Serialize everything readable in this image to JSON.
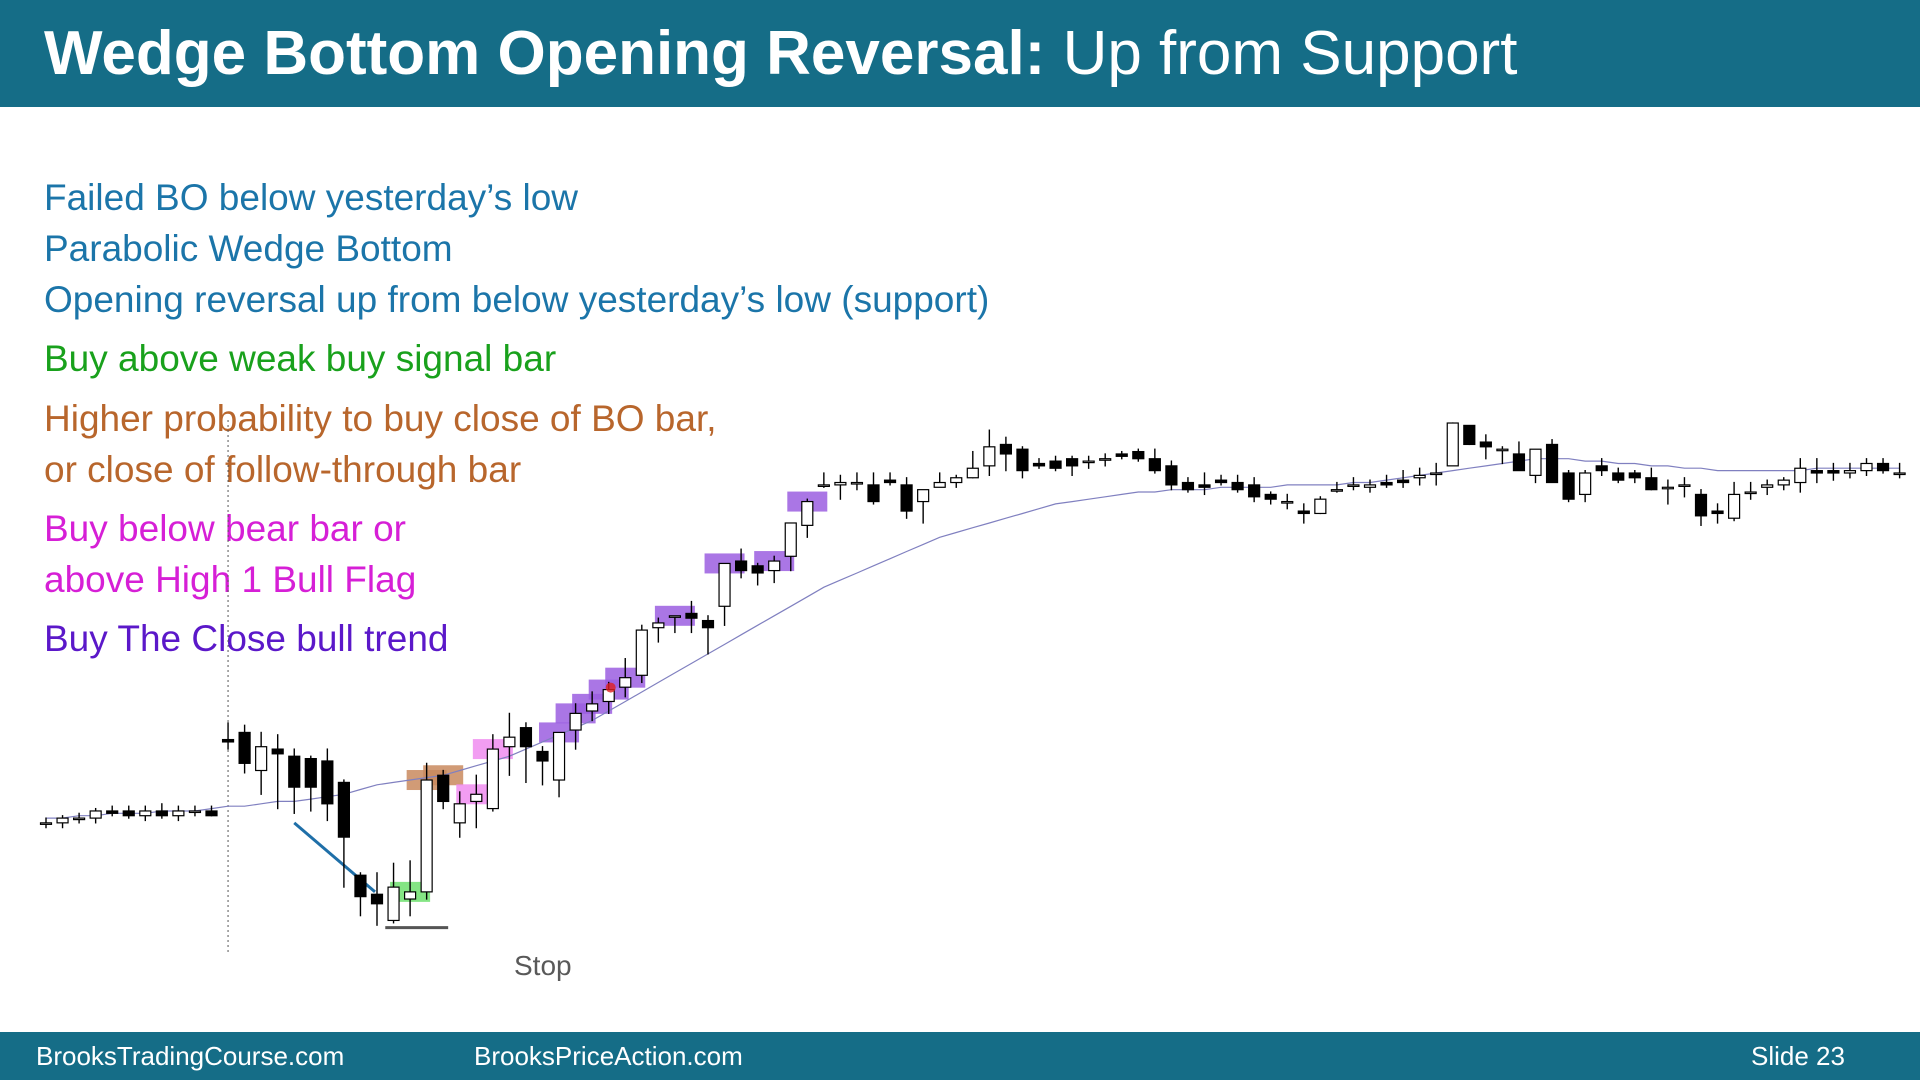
{
  "header": {
    "title_bold": "Wedge Bottom Opening Reversal:",
    "title_rest": "Up from Support"
  },
  "notes": [
    {
      "text": "Failed BO below yesterday’s low",
      "color": "#1b75a9"
    },
    {
      "text": "Parabolic Wedge Bottom",
      "color": "#1b75a9"
    },
    {
      "text": "Opening reversal up from below yesterday’s low (support)",
      "color": "#1b75a9"
    },
    {
      "text": "Buy above weak buy signal bar",
      "color": "#19a11c"
    },
    {
      "text": "Higher probability to buy close of BO bar,",
      "color": "#b8662c"
    },
    {
      "text": "or close of follow-through bar",
      "color": "#b8662c"
    },
    {
      "text": "Buy below bear bar or",
      "color": "#d61fd6"
    },
    {
      "text": "above High 1 Bull Flag",
      "color": "#d61fd6"
    },
    {
      "text": "Buy The Close bull trend",
      "color": "#5b18c9"
    }
  ],
  "chart_labels": {
    "stop": "Stop"
  },
  "colors": {
    "header_bg": "#156d87",
    "ema": "#8080c0",
    "wedge_line": "#1f6fa8",
    "signal_green": "#6fe06f",
    "bo_orange": "#c98a5e",
    "flag_pink": "#f08cf0",
    "trend_purple": "#9b5ee0",
    "bear_bar": "#000000",
    "bull_bar": "#ffffff"
  },
  "chart_data": {
    "type": "candlestick",
    "x_unit": "bar index",
    "y_unit": "relative price (unlabeled axis)",
    "bars": [
      [
        0,
        3,
        4,
        2,
        3
      ],
      [
        1,
        3,
        5,
        2,
        5
      ],
      [
        2,
        5,
        6,
        4,
        5
      ],
      [
        3,
        5,
        8,
        4,
        8
      ],
      [
        4,
        8,
        9,
        7,
        7
      ],
      [
        5,
        8,
        9,
        6,
        6
      ],
      [
        6,
        6,
        9,
        5,
        8
      ],
      [
        7,
        8,
        10,
        6,
        6
      ],
      [
        8,
        6,
        9,
        5,
        8
      ],
      [
        9,
        8,
        9,
        7,
        8
      ],
      [
        10,
        8,
        9,
        7,
        6
      ],
      [
        11,
        38,
        44,
        35,
        37
      ],
      [
        12,
        41,
        43,
        25,
        28
      ],
      [
        13,
        25,
        40,
        16,
        35
      ],
      [
        14,
        34,
        39,
        10,
        32
      ],
      [
        15,
        31,
        33,
        8,
        18
      ],
      [
        16,
        30,
        30,
        9,
        18
      ],
      [
        17,
        29,
        33,
        5,
        11
      ],
      [
        18,
        20,
        20,
        -23,
        -3
      ],
      [
        19,
        -19,
        -19,
        -35,
        -28
      ],
      [
        20,
        -27,
        -19,
        -39,
        -31
      ],
      [
        21,
        -38,
        -15,
        -38,
        -24
      ],
      [
        22,
        -29,
        -14,
        -35,
        -26
      ],
      [
        23,
        -26,
        27,
        -28,
        21
      ],
      [
        24,
        23,
        24,
        10,
        12
      ],
      [
        25,
        3,
        15,
        -2,
        11
      ],
      [
        26,
        12,
        22,
        2,
        15
      ],
      [
        27,
        9,
        39,
        9,
        34
      ],
      [
        28,
        35,
        48,
        24,
        39
      ],
      [
        29,
        43,
        44,
        21,
        35
      ],
      [
        30,
        33,
        34,
        20,
        29
      ],
      [
        31,
        21,
        39,
        15,
        41
      ],
      [
        32,
        42,
        52,
        35,
        49
      ],
      [
        33,
        50,
        57,
        47,
        53
      ],
      [
        34,
        54,
        61,
        50,
        59
      ],
      [
        35,
        60,
        71,
        57,
        64
      ],
      [
        36,
        65,
        85,
        63,
        84
      ],
      [
        37,
        85,
        88,
        80,
        87
      ],
      [
        38,
        90,
        88,
        84,
        90
      ],
      [
        39,
        91,
        95,
        84,
        89
      ],
      [
        40,
        88,
        89,
        75,
        85
      ],
      [
        41,
        94,
        110,
        87,
        112
      ],
      [
        42,
        113,
        117,
        107,
        109
      ],
      [
        43,
        111,
        111,
        104,
        108
      ],
      [
        44,
        109,
        114,
        105,
        113
      ],
      [
        45,
        115,
        124,
        110,
        129
      ],
      [
        46,
        128,
        138,
        124,
        138
      ],
      [
        47,
        145,
        149,
        145,
        145
      ],
      [
        48,
        145,
        148,
        140,
        146
      ],
      [
        49,
        146,
        149,
        144,
        146
      ],
      [
        50,
        145,
        149,
        138,
        138
      ],
      [
        51,
        147,
        149,
        146,
        146
      ],
      [
        52,
        145,
        147,
        132,
        134
      ],
      [
        53,
        138,
        139,
        130,
        143
      ],
      [
        54,
        144,
        149,
        146,
        146
      ],
      [
        55,
        146,
        148,
        145,
        148
      ],
      [
        56,
        148,
        158,
        149,
        152
      ],
      [
        57,
        153,
        167,
        150,
        161
      ],
      [
        58,
        162,
        164,
        152,
        158
      ],
      [
        59,
        160,
        160,
        149,
        151
      ],
      [
        60,
        154,
        155,
        153,
        153
      ],
      [
        61,
        155,
        156,
        152,
        152
      ],
      [
        62,
        156,
        156,
        150,
        153
      ],
      [
        63,
        155,
        156,
        153,
        155
      ],
      [
        64,
        156,
        157,
        154,
        156
      ],
      [
        65,
        158,
        158,
        157,
        157
      ],
      [
        66,
        159,
        159,
        156,
        156
      ],
      [
        67,
        156,
        159,
        151,
        151
      ],
      [
        68,
        153,
        154,
        144,
        145
      ],
      [
        69,
        146,
        147,
        143,
        143
      ],
      [
        70,
        145,
        149,
        142,
        144
      ],
      [
        71,
        147,
        148,
        146,
        146
      ],
      [
        72,
        146,
        148,
        143,
        143
      ],
      [
        73,
        145,
        147,
        139,
        140
      ],
      [
        74,
        141,
        141,
        138,
        139
      ],
      [
        75,
        138,
        140,
        136,
        138
      ],
      [
        76,
        134,
        136,
        130,
        133
      ],
      [
        77,
        133,
        139,
        134,
        139
      ],
      [
        78,
        143,
        145,
        143,
        143
      ],
      [
        79,
        145,
        147,
        144,
        145
      ],
      [
        80,
        144,
        146,
        143,
        145
      ],
      [
        81,
        146,
        148,
        145,
        145
      ],
      [
        82,
        147,
        150,
        145,
        146
      ],
      [
        83,
        148,
        151,
        146,
        149
      ],
      [
        84,
        150,
        153,
        146,
        150
      ],
      [
        85,
        153,
        170,
        158,
        171
      ],
      [
        86,
        170,
        168,
        163,
        162
      ],
      [
        87,
        163,
        165,
        157,
        161
      ],
      [
        88,
        160,
        160,
        155,
        160
      ],
      [
        89,
        158,
        162,
        153,
        151
      ],
      [
        90,
        149,
        158,
        147,
        160
      ],
      [
        91,
        162,
        163,
        148,
        146
      ],
      [
        92,
        150,
        150,
        139,
        139
      ],
      [
        93,
        141,
        150,
        139,
        150
      ],
      [
        94,
        153,
        155,
        150,
        151
      ],
      [
        95,
        150,
        151,
        147,
        147
      ],
      [
        96,
        150,
        150,
        147,
        148
      ],
      [
        97,
        148,
        151,
        144,
        143
      ],
      [
        98,
        144,
        146,
        138,
        144
      ],
      [
        99,
        145,
        147,
        141,
        145
      ],
      [
        100,
        141,
        142,
        129,
        132
      ],
      [
        101,
        134,
        136,
        130,
        133
      ],
      [
        102,
        131,
        145,
        131,
        141
      ],
      [
        103,
        142,
        145,
        140,
        142
      ],
      [
        104,
        144,
        146,
        142,
        145
      ],
      [
        105,
        145,
        147,
        144,
        147
      ],
      [
        106,
        146,
        155,
        143,
        152
      ],
      [
        107,
        151,
        155,
        147,
        150
      ],
      [
        108,
        151,
        153,
        148,
        150
      ],
      [
        109,
        150,
        153,
        149,
        151
      ],
      [
        110,
        151,
        155,
        150,
        154
      ],
      [
        111,
        154,
        155,
        151,
        151
      ],
      [
        112,
        150,
        153,
        149,
        150
      ]
    ],
    "bar_format": [
      "index",
      "open",
      "high",
      "low",
      "close"
    ],
    "ema": [
      5,
      5,
      6,
      6,
      7,
      7,
      7,
      8,
      8,
      8,
      9,
      10,
      10,
      11,
      12,
      12,
      13,
      14,
      15,
      17,
      19,
      20,
      21,
      22,
      23,
      25,
      27,
      29,
      31,
      34,
      37,
      40,
      43,
      46,
      50,
      54,
      58,
      62,
      66,
      70,
      74,
      78,
      82,
      86,
      90,
      94,
      98,
      102,
      105,
      108,
      111,
      114,
      117,
      120,
      123,
      125,
      127,
      129,
      131,
      133,
      135,
      137,
      138,
      139,
      140,
      141,
      142,
      142,
      143,
      143,
      143,
      144,
      144,
      144,
      144,
      145,
      145,
      145,
      145,
      146,
      146,
      147,
      148,
      149,
      150,
      151,
      152,
      153,
      154,
      155,
      156,
      156,
      156,
      155,
      155,
      154,
      154,
      153,
      153,
      152,
      152,
      151,
      151,
      151,
      151,
      151,
      151,
      152,
      152,
      152,
      152,
      152,
      152
    ],
    "annotations": {
      "signal_bar": [
        22
      ],
      "breakout_bars": [
        23,
        24
      ],
      "flag_bars": [
        26,
        27
      ],
      "trend_bars": [
        31,
        32,
        33,
        34,
        35,
        38,
        41,
        44,
        46
      ]
    },
    "wedge_line": {
      "from_bar": 15,
      "from_price": 3,
      "to_bar": 20,
      "to_price": -26
    },
    "stop_line_price": -41,
    "session_open_bar": 11,
    "title": "",
    "xlabel": "",
    "ylabel": ""
  }
}
